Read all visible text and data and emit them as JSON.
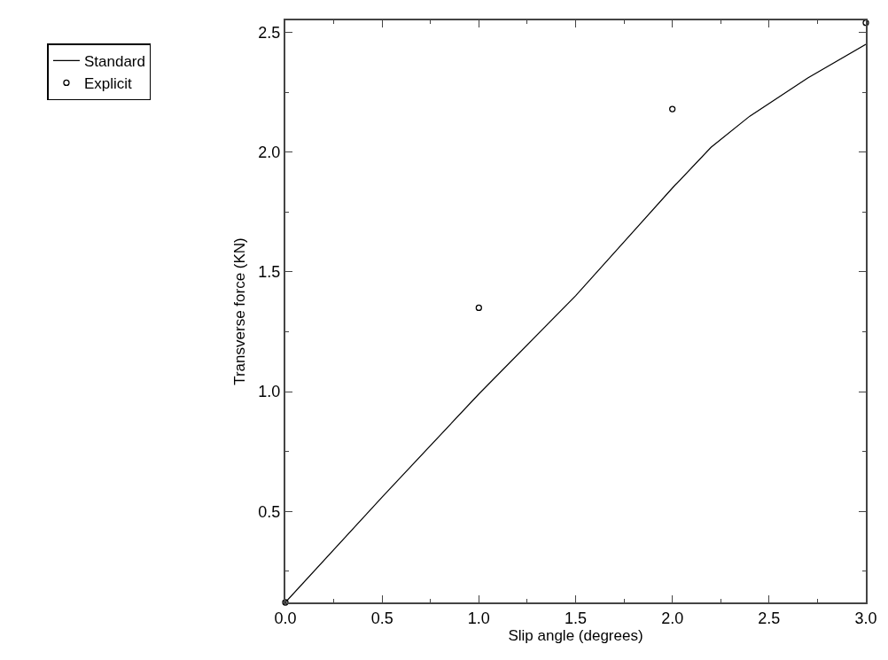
{
  "chart_data": {
    "type": "line",
    "xlabel": "Slip angle (degrees)",
    "ylabel": "Transverse force (KN)",
    "xlim": [
      0,
      3
    ],
    "xticks": [
      {
        "value": 0,
        "label": "0.0"
      },
      0.5,
      {
        "value": 1,
        "label": "1.0"
      },
      1.5,
      {
        "value": 2,
        "label": "2.0"
      },
      2.5,
      {
        "value": 3,
        "label": "3.0"
      }
    ],
    "ylim": [
      0.12,
      2.55
    ],
    "yticks": [
      0.5,
      {
        "value": 1,
        "label": "1.0"
      },
      1.5,
      {
        "value": 2,
        "label": "2.0"
      },
      2.5
    ],
    "grid": false,
    "legend": "top left",
    "series": [
      {
        "name": "Standard",
        "color": "#000000",
        "marker": "none",
        "line_style": "solid",
        "x": [
          0,
          0.5,
          1,
          1.5,
          2,
          2.2,
          2.4,
          2.7,
          3
        ],
        "values": [
          0.12,
          0.56,
          0.99,
          1.4,
          1.85,
          2.02,
          2.15,
          2.31,
          2.45
        ]
      },
      {
        "name": "Explicit",
        "type": "scatter",
        "color": "#000000",
        "marker": "circle",
        "x": [
          0,
          1,
          2,
          3
        ],
        "values": [
          0.12,
          1.35,
          2.18,
          2.54
        ]
      }
    ]
  }
}
